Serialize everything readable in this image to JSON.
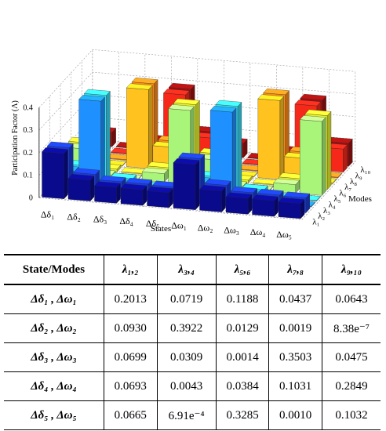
{
  "chart_data": {
    "type": "bar3d",
    "title": "",
    "zlabel": "Participation Factor (Λ)",
    "xlabel": "States",
    "ylabel": "Modes",
    "zlim": [
      0,
      0.4
    ],
    "zticks": [
      "0",
      "0.1",
      "0.2",
      "0.3",
      "0.4"
    ],
    "grid": true,
    "states": [
      "Δδ₁",
      "Δδ₂",
      "Δδ₃",
      "Δδ₄",
      "Δδ₅",
      "Δω₁",
      "Δω₂",
      "Δω₃",
      "Δω₄",
      "Δω₅"
    ],
    "modes": [
      "λ₁",
      "λ₂",
      "λ₃",
      "λ₄",
      "λ₅",
      "λ₆",
      "λ₇",
      "λ₈",
      "λ₉",
      "λ₁₀"
    ],
    "values": [
      [
        0.2013,
        0.2013,
        0.0719,
        0.0719,
        0.1188,
        0.1188,
        0.0437,
        0.0437,
        0.0643,
        0.0643
      ],
      [
        0.093,
        0.093,
        0.3922,
        0.3922,
        0.0129,
        0.0129,
        0.0019,
        0.0019,
        0.0,
        0.0
      ],
      [
        0.0699,
        0.0699,
        0.0309,
        0.0309,
        0.0014,
        0.0014,
        0.3503,
        0.3503,
        0.0475,
        0.0475
      ],
      [
        0.0693,
        0.0693,
        0.0043,
        0.0043,
        0.0384,
        0.0384,
        0.1031,
        0.1031,
        0.2849,
        0.2849
      ],
      [
        0.0665,
        0.0665,
        0.0007,
        0.0007,
        0.3285,
        0.3285,
        0.001,
        0.001,
        0.1032,
        0.1032
      ],
      [
        0.2013,
        0.2013,
        0.0719,
        0.0719,
        0.1188,
        0.1188,
        0.0437,
        0.0437,
        0.0643,
        0.0643
      ],
      [
        0.093,
        0.093,
        0.3922,
        0.3922,
        0.0129,
        0.0129,
        0.0019,
        0.0019,
        0.0,
        0.0
      ],
      [
        0.0699,
        0.0699,
        0.0309,
        0.0309,
        0.0014,
        0.0014,
        0.3503,
        0.3503,
        0.0475,
        0.0475
      ],
      [
        0.0693,
        0.0693,
        0.0043,
        0.0043,
        0.0384,
        0.0384,
        0.1031,
        0.1031,
        0.2849,
        0.2849
      ],
      [
        0.0665,
        0.0665,
        0.0007,
        0.0007,
        0.3285,
        0.3285,
        0.001,
        0.001,
        0.1032,
        0.1032
      ]
    ],
    "mode_colors": [
      "#0a0a8c",
      "#1a3cd6",
      "#1e90ff",
      "#38d8f2",
      "#a8f57a",
      "#e6f22e",
      "#ffc21e",
      "#ff8c1a",
      "#f5281a",
      "#9c1010"
    ]
  },
  "table": {
    "header": [
      "State/Modes",
      "λ₁,₂",
      "λ₃,₄",
      "λ₅,₆",
      "λ₇,₈",
      "λ₉,₁₀"
    ],
    "rows": [
      {
        "label": "Δδ₁ , Δω₁",
        "cells": [
          "0.2013",
          "0.0719",
          "0.1188",
          "0.0437",
          "0.0643"
        ]
      },
      {
        "label": "Δδ₂ , Δω₂",
        "cells": [
          "0.0930",
          "0.3922",
          "0.0129",
          "0.0019",
          "8.38e⁻⁷"
        ]
      },
      {
        "label": "Δδ₃ , Δω₃",
        "cells": [
          "0.0699",
          "0.0309",
          "0.0014",
          "0.3503",
          "0.0475"
        ]
      },
      {
        "label": "Δδ₄ , Δω₄",
        "cells": [
          "0.0693",
          "0.0043",
          "0.0384",
          "0.1031",
          "0.2849"
        ]
      },
      {
        "label": "Δδ₅ , Δω₅",
        "cells": [
          "0.0665",
          "6.91e⁻⁴",
          "0.3285",
          "0.0010",
          "0.1032"
        ]
      }
    ]
  }
}
